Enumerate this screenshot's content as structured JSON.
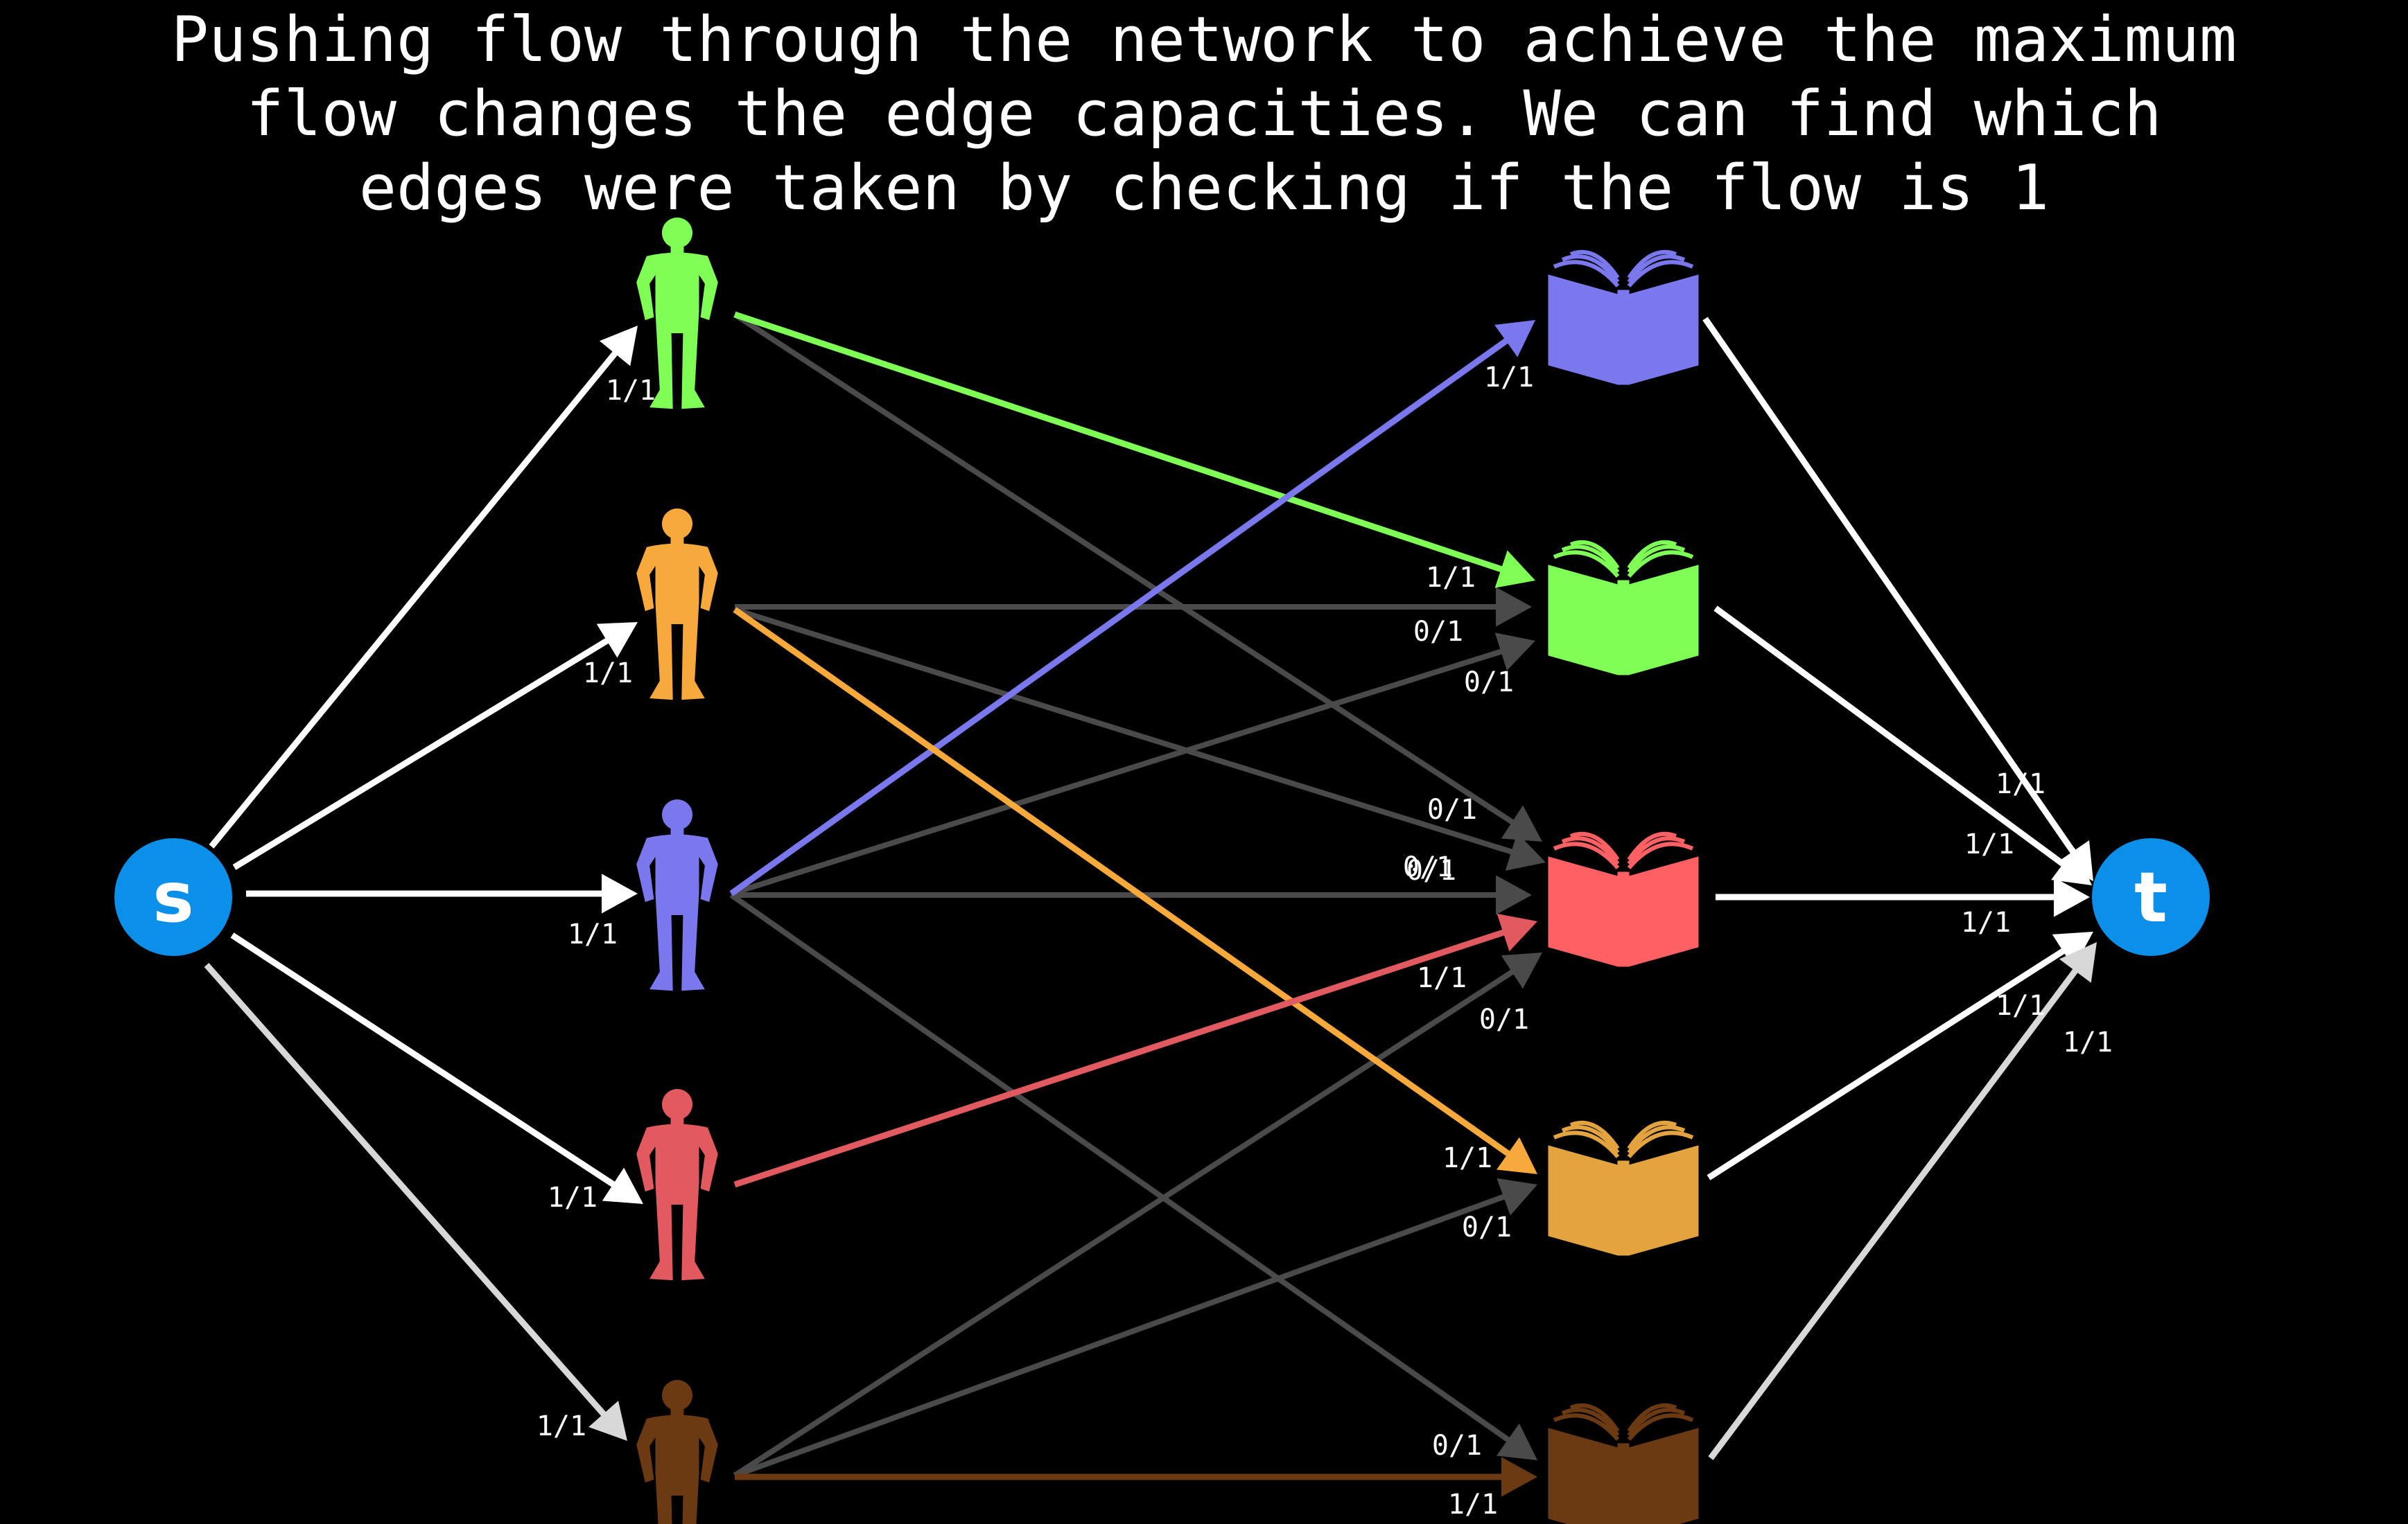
{
  "title": {
    "lines": [
      "Pushing flow through the network to achieve the maximum",
      "flow changes the edge capacities. We can find which",
      "edges were taken by checking if the flow is 1"
    ]
  },
  "nodes": {
    "source": {
      "label": "s"
    },
    "sink": {
      "label": "t"
    },
    "people": [
      {
        "color": "#7fff55"
      },
      {
        "color": "#f7a93c"
      },
      {
        "color": "#7b78ee"
      },
      {
        "color": "#e05a5f"
      },
      {
        "color": "#6b3a12"
      }
    ],
    "books": [
      {
        "color": "#7b78ee"
      },
      {
        "color": "#7fff55"
      },
      {
        "color": "#ff6064"
      },
      {
        "color": "#e3a33f"
      },
      {
        "color": "#6b3a12"
      }
    ]
  },
  "edges": {
    "source_edges": [
      {
        "to": 0,
        "label": "1/1"
      },
      {
        "to": 1,
        "label": "1/1"
      },
      {
        "to": 2,
        "label": "1/1"
      },
      {
        "to": 3,
        "label": "1/1"
      },
      {
        "to": 4,
        "label": "1/1"
      }
    ],
    "sink_edges": [
      {
        "from": 0,
        "label": "1/1"
      },
      {
        "from": 1,
        "label": "1/1"
      },
      {
        "from": 2,
        "label": "1/1"
      },
      {
        "from": 3,
        "label": "1/1"
      },
      {
        "from": 4,
        "label": "1/1"
      }
    ],
    "matching_edges": [
      {
        "person": 0,
        "book": 1,
        "label": "1/1",
        "used": true
      },
      {
        "person": 2,
        "book": 0,
        "label": "1/1",
        "used": true
      },
      {
        "person": 1,
        "book": 3,
        "label": "1/1",
        "used": true
      },
      {
        "person": 3,
        "book": 2,
        "label": "1/1",
        "used": true
      },
      {
        "person": 4,
        "book": 4,
        "label": "1/1",
        "used": true
      },
      {
        "person": 0,
        "book": 2,
        "label": "0/1",
        "used": false
      },
      {
        "person": 1,
        "book": 1,
        "label": "0/1",
        "used": false
      },
      {
        "person": 1,
        "book": 2,
        "label": "0/1",
        "used": false
      },
      {
        "person": 2,
        "book": 1,
        "label": "0/1",
        "used": false
      },
      {
        "person": 2,
        "book": 2,
        "label": "0/1",
        "used": false
      },
      {
        "person": 2,
        "book": 4,
        "label": "0/1",
        "used": false
      },
      {
        "person": 4,
        "book": 2,
        "label": "0/1",
        "used": false
      },
      {
        "person": 4,
        "book": 3,
        "label": "0/1",
        "used": false
      }
    ]
  }
}
